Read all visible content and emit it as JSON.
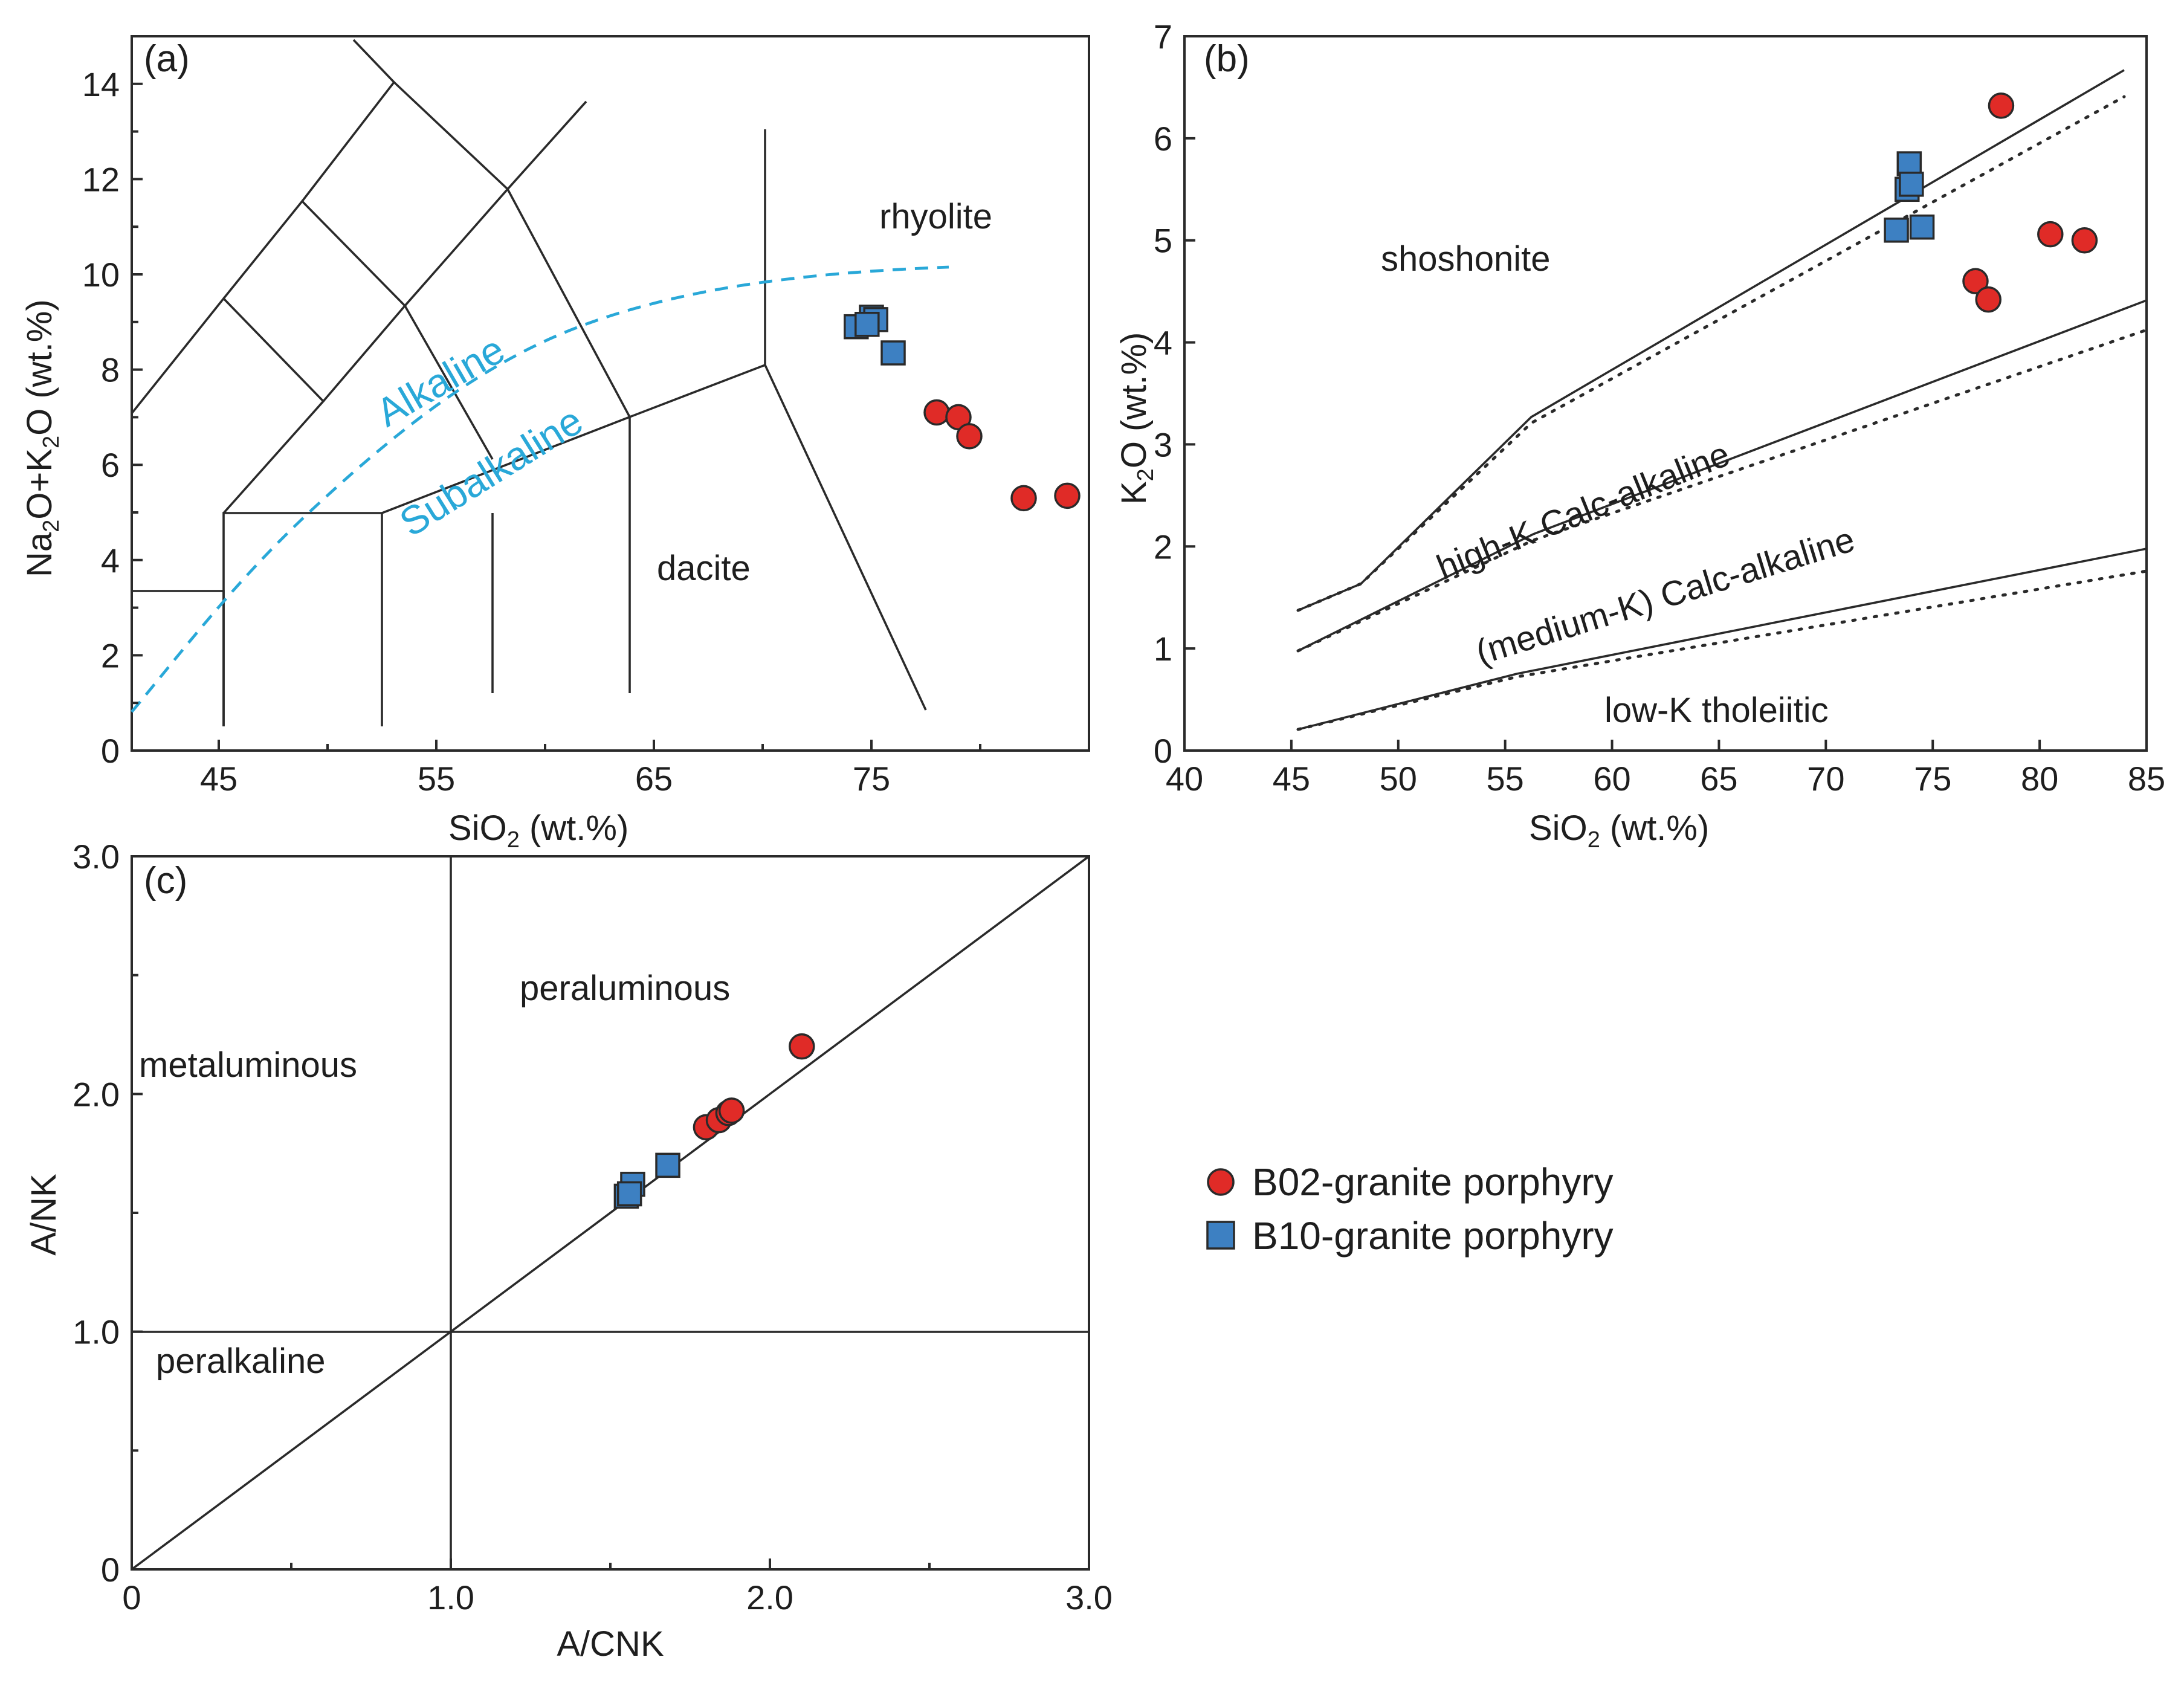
{
  "chart_data": [
    {
      "panel": "(a)",
      "type": "scatter",
      "xlabel": "SiO2 (wt.%)",
      "ylabel": "Na2O+K2O (wt.%)",
      "xlim": [
        41,
        85
      ],
      "ylim": [
        0,
        15
      ],
      "xticks": [
        "45",
        "55",
        "65",
        "75"
      ],
      "yticks": [
        "0",
        "2",
        "4",
        "6",
        "8",
        "10",
        "12",
        "14"
      ],
      "field_labels": {
        "rhyolite": "rhyolite",
        "dacite": "dacite",
        "alkaline": "Alkaline",
        "subalkaline": "Subalkaline"
      },
      "series": [
        {
          "name": "B02-granite porphyry",
          "x": [
            78.0,
            79.0,
            79.5,
            82.0,
            84.0
          ],
          "y": [
            7.1,
            7.0,
            6.6,
            5.3,
            5.35
          ]
        },
        {
          "name": "B10-granite porphyry",
          "x": [
            74.3,
            75.0,
            75.2,
            74.8,
            76.0
          ],
          "y": [
            8.9,
            9.1,
            9.05,
            8.95,
            8.35
          ]
        }
      ]
    },
    {
      "panel": "(b)",
      "type": "scatter",
      "xlabel": "SiO2 (wt.%)",
      "ylabel": "K2O (wt.%)",
      "xlim": [
        40,
        85
      ],
      "ylim": [
        0,
        7
      ],
      "xticks": [
        "40",
        "45",
        "50",
        "55",
        "60",
        "65",
        "70",
        "75",
        "80",
        "85"
      ],
      "yticks": [
        "0",
        "1",
        "2",
        "3",
        "4",
        "5",
        "6",
        "7"
      ],
      "field_labels": {
        "shoshonite": "shoshonite",
        "high_k": "high-K Calc-alkaline",
        "medium_k": "(medium-K) Calc-alkaline",
        "low_k": "low-K tholeiitic"
      },
      "series": [
        {
          "name": "B02-granite porphyry",
          "x": [
            78.2,
            77.0,
            77.6,
            80.5,
            82.1
          ],
          "y": [
            6.32,
            4.6,
            4.42,
            5.06,
            5.0
          ]
        },
        {
          "name": "B10-granite porphyry",
          "x": [
            73.9,
            73.8,
            74.0,
            73.3,
            74.5
          ],
          "y": [
            5.75,
            5.5,
            5.55,
            5.1,
            5.13
          ]
        }
      ]
    },
    {
      "panel": "(c)",
      "type": "scatter",
      "xlabel": "A/CNK",
      "ylabel": "A/NK",
      "xlim": [
        0,
        3
      ],
      "ylim": [
        0,
        3
      ],
      "xticks": [
        "0",
        "1.0",
        "2.0",
        "3.0"
      ],
      "yticks": [
        "0",
        "1.0",
        "2.0",
        "3.0"
      ],
      "field_labels": {
        "peraluminous": "peraluminous",
        "metaluminous": "metaluminous",
        "peralkaline": "peralkaline"
      },
      "series": [
        {
          "name": "B02-granite porphyry",
          "x": [
            2.1,
            1.8,
            1.84,
            1.87,
            1.88
          ],
          "y": [
            2.2,
            1.86,
            1.89,
            1.92,
            1.93
          ]
        },
        {
          "name": "B10-granite porphyry",
          "x": [
            1.55,
            1.57,
            1.56,
            1.68
          ],
          "y": [
            1.57,
            1.62,
            1.58,
            1.7
          ]
        }
      ]
    }
  ],
  "legend": [
    {
      "label": "B02-granite porphyry",
      "marker": "circle",
      "color": "#e02b27"
    },
    {
      "label": "B10-granite porphyry",
      "marker": "square",
      "color": "#3d80c2"
    }
  ]
}
